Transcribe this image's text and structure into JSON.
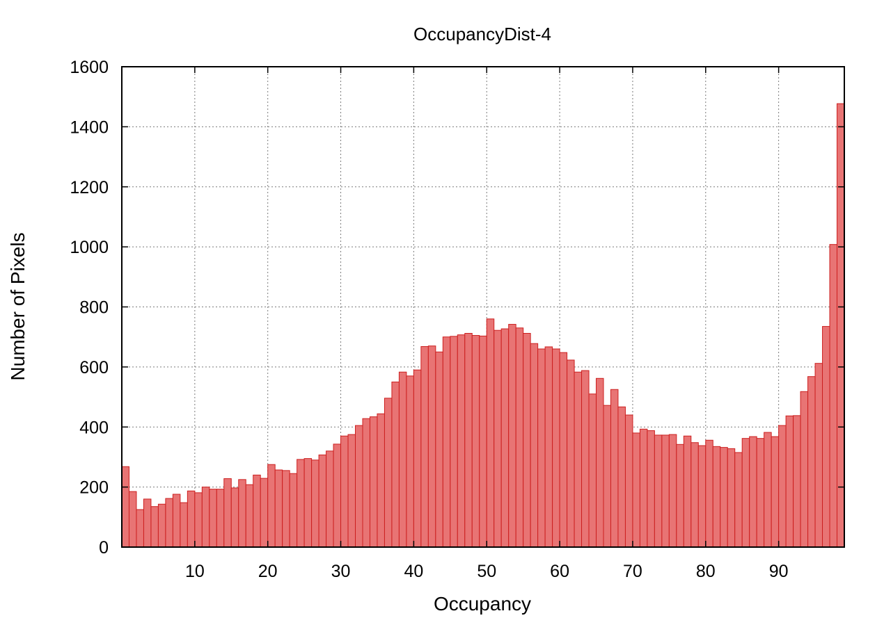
{
  "chart_data": {
    "type": "bar",
    "title": "OccupancyDist-4",
    "xlabel": "Occupancy",
    "ylabel": "Number of Pixels",
    "xlim": [
      0,
      99
    ],
    "ylim": [
      0,
      1600
    ],
    "xticks": [
      10,
      20,
      30,
      40,
      50,
      60,
      70,
      80,
      90
    ],
    "yticks": [
      0,
      200,
      400,
      600,
      800,
      1000,
      1200,
      1400,
      1600
    ],
    "grid": true,
    "bar_color": "#e87474",
    "bar_edge_color": "#cc1f1f",
    "x": [
      1,
      2,
      3,
      4,
      5,
      6,
      7,
      8,
      9,
      10,
      11,
      12,
      13,
      14,
      15,
      16,
      17,
      18,
      19,
      20,
      21,
      22,
      23,
      24,
      25,
      26,
      27,
      28,
      29,
      30,
      31,
      32,
      33,
      34,
      35,
      36,
      37,
      38,
      39,
      40,
      41,
      42,
      43,
      44,
      45,
      46,
      47,
      48,
      49,
      50,
      51,
      52,
      53,
      54,
      55,
      56,
      57,
      58,
      59,
      60,
      61,
      62,
      63,
      64,
      65,
      66,
      67,
      68,
      69,
      70,
      71,
      72,
      73,
      74,
      75,
      76,
      77,
      78,
      79,
      80,
      81,
      82,
      83,
      84,
      85,
      86,
      87,
      88,
      89,
      90,
      91,
      92,
      93,
      94,
      95,
      96,
      97,
      98,
      99
    ],
    "values": [
      268,
      185,
      125,
      160,
      135,
      143,
      162,
      176,
      148,
      187,
      181,
      200,
      193,
      193,
      228,
      197,
      225,
      208,
      240,
      229,
      275,
      257,
      255,
      245,
      292,
      295,
      290,
      307,
      320,
      343,
      370,
      375,
      405,
      428,
      434,
      444,
      496,
      550,
      583,
      570,
      590,
      668,
      670,
      650,
      700,
      702,
      707,
      712,
      705,
      703,
      760,
      722,
      727,
      742,
      730,
      712,
      678,
      660,
      667,
      660,
      648,
      623,
      583,
      588,
      510,
      562,
      472,
      525,
      467,
      440,
      380,
      393,
      388,
      373,
      373,
      375,
      342,
      370,
      348,
      338,
      356,
      335,
      332,
      328,
      315,
      362,
      368,
      362,
      382,
      368,
      405,
      437,
      438,
      518,
      568,
      612,
      735,
      1008,
      1477
    ]
  }
}
